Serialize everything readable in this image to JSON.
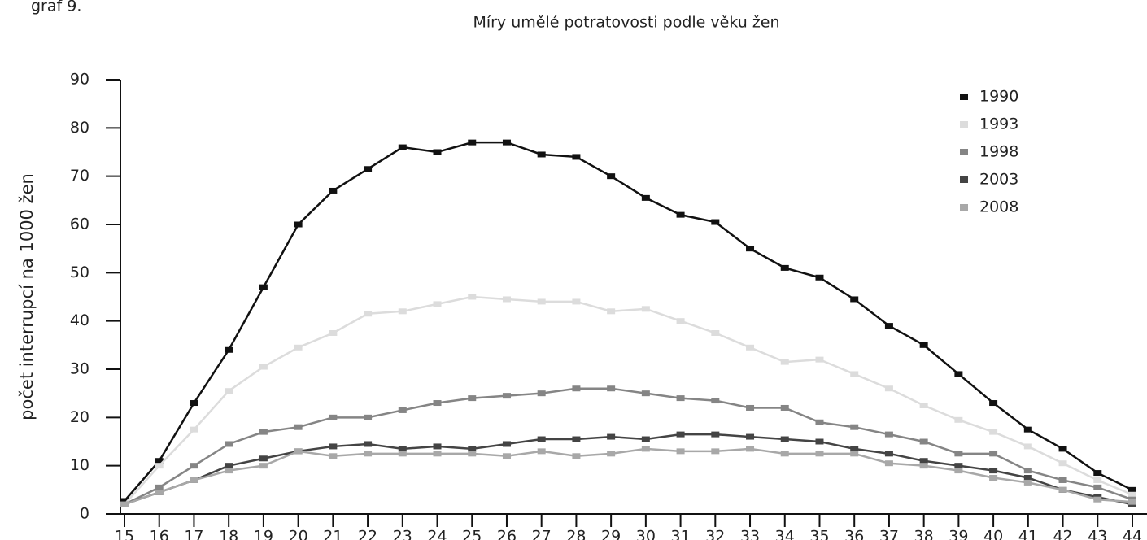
{
  "chart_data": {
    "type": "line",
    "caption": "graf 9.",
    "title": "Míry umělé potratovosti podle věku žen",
    "ylabel": "počet interrupcí na 1000 žen",
    "x": [
      15,
      16,
      17,
      18,
      19,
      20,
      21,
      22,
      23,
      24,
      25,
      26,
      27,
      28,
      29,
      30,
      31,
      32,
      33,
      34,
      35,
      36,
      37,
      38,
      39,
      40,
      41,
      42,
      43,
      44
    ],
    "xlim": [
      15,
      44
    ],
    "xticks": [
      15,
      16,
      17,
      18,
      19,
      20,
      21,
      22,
      23,
      24,
      25,
      26,
      27,
      28,
      29,
      30,
      31,
      32,
      33,
      34,
      35,
      36,
      37,
      38,
      39,
      40,
      41,
      42,
      43,
      44
    ],
    "ylim": [
      0,
      90
    ],
    "yticks": [
      0,
      10,
      20,
      30,
      40,
      50,
      60,
      70,
      80,
      90
    ],
    "legend": "upper right",
    "series": [
      {
        "name": "1990",
        "color": "#111111",
        "values": [
          2.7,
          11,
          23,
          34,
          47,
          60,
          67,
          71.5,
          76,
          75,
          77,
          77,
          74.5,
          74,
          70,
          65.5,
          62,
          60.5,
          55,
          51,
          49,
          44.5,
          39,
          35,
          29,
          23,
          17.5,
          13.5,
          8.5,
          5
        ]
      },
      {
        "name": "1993",
        "color": "#dcdcdc",
        "values": [
          2,
          10,
          17.5,
          25.5,
          30.5,
          34.5,
          37.5,
          41.5,
          42,
          43.5,
          45,
          44.5,
          44,
          44,
          42,
          42.5,
          40,
          37.5,
          34.5,
          31.5,
          32,
          29,
          26,
          22.5,
          19.5,
          17,
          14,
          10.5,
          7,
          4
        ]
      },
      {
        "name": "1998",
        "color": "#858585",
        "values": [
          2,
          5.5,
          10,
          14.5,
          17,
          18,
          20,
          20,
          21.5,
          23,
          24,
          24.5,
          25,
          26,
          26,
          25,
          24,
          23.5,
          22,
          22,
          19,
          18,
          16.5,
          15,
          12.5,
          12.5,
          9,
          7,
          5.5,
          3
        ]
      },
      {
        "name": "2003",
        "color": "#444444",
        "values": [
          2,
          4.5,
          7,
          10,
          11.5,
          13,
          14,
          14.5,
          13.5,
          14,
          13.5,
          14.5,
          15.5,
          15.5,
          16,
          15.5,
          16.5,
          16.5,
          16,
          15.5,
          15,
          13.5,
          12.5,
          11,
          10,
          9,
          7.5,
          5,
          3.5,
          2
        ]
      },
      {
        "name": "2008",
        "color": "#a8a8a8",
        "values": [
          2,
          4.5,
          7,
          9,
          10,
          13,
          12,
          12.5,
          12.5,
          12.5,
          12.5,
          12,
          13,
          12,
          12.5,
          13.5,
          13,
          13,
          13.5,
          12.5,
          12.5,
          12.5,
          10.5,
          10,
          9,
          7.5,
          6.5,
          5,
          3,
          2.5
        ]
      }
    ]
  }
}
